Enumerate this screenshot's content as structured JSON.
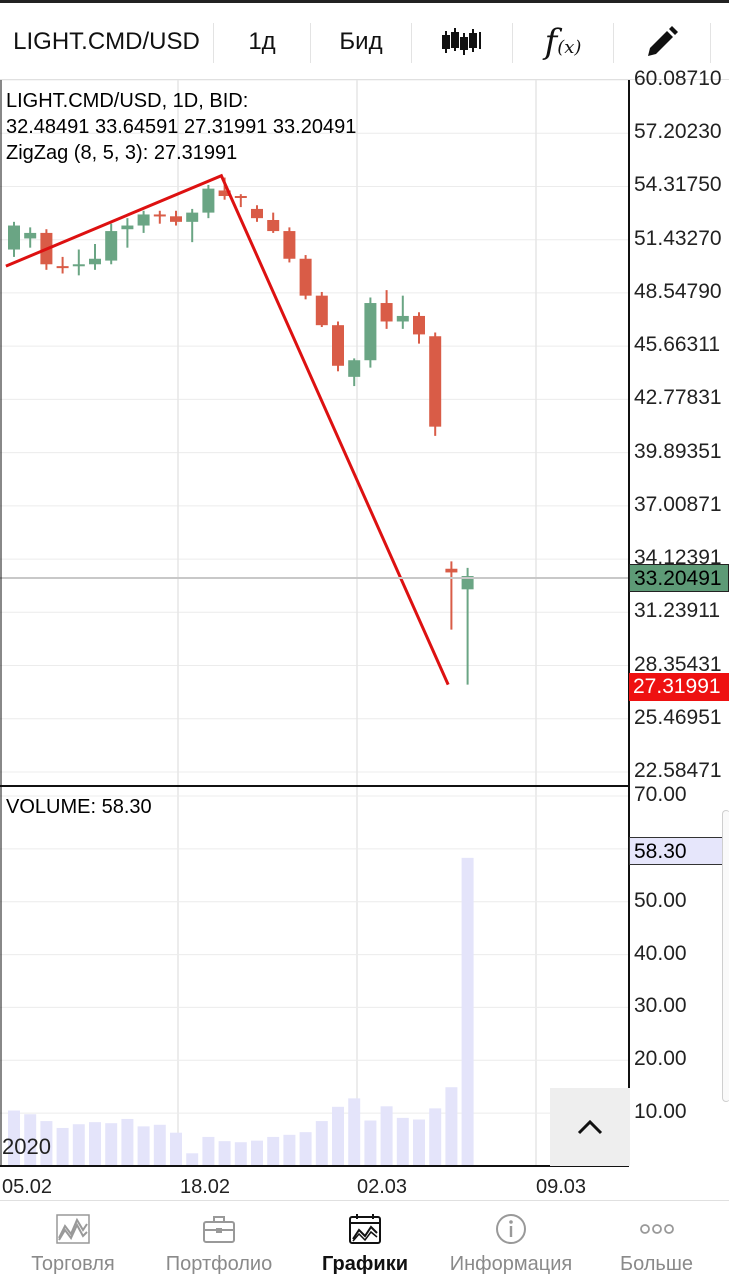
{
  "toolbar": {
    "symbol": "LIGHT.CMD/USD",
    "timeframe": "1д",
    "price_type": "Бид",
    "chart_type_icon": "candlestick-icon",
    "indicator_icon": "function-icon",
    "draw_icon": "pencil-icon",
    "indicator_text": "f",
    "indicator_sub": "(x)"
  },
  "legend": {
    "line1": "LIGHT.CMD/USD, 1D, BID:",
    "line2": "32.48491 33.64591 27.31991 33.20491",
    "line3": "ZigZag (8, 5, 3): 27.31991"
  },
  "price_axis": [
    "60.08710",
    "57.20230",
    "54.31750",
    "51.43270",
    "48.54790",
    "45.66311",
    "42.77831",
    "39.89351",
    "37.00871",
    "34.12391",
    "31.23911",
    "28.35431",
    "25.46951",
    "22.58471"
  ],
  "current_price": "33.20491",
  "zigzag_price": "27.31991",
  "colors": {
    "up": "#6aa584",
    "down": "#d95c47",
    "zigzag": "#dd1111",
    "volume": "#e4e4fa",
    "current_tag": "#5d9a76",
    "zigzag_tag": "#ee1111"
  },
  "volume": {
    "label": "VOLUME: 58.30",
    "current": "58.30",
    "axis": [
      "70.00",
      "60.00",
      "50.00",
      "40.00",
      "30.00",
      "20.00",
      "10.00"
    ]
  },
  "year_label": "2020",
  "dates": [
    "05.02",
    "18.02",
    "02.03",
    "09.03"
  ],
  "nav": [
    {
      "label": "Торговля",
      "icon": "trading-icon"
    },
    {
      "label": "Портфолио",
      "icon": "briefcase-icon"
    },
    {
      "label": "Графики",
      "icon": "charts-icon",
      "active": true
    },
    {
      "label": "Информация",
      "icon": "info-icon"
    },
    {
      "label": "Больше",
      "icon": "more-icon"
    }
  ],
  "chart_data": {
    "type": "candlestick",
    "series": [
      {
        "name": "LIGHT.CMD/USD",
        "ohlc": [
          [
            50.9,
            52.4,
            50.5,
            52.2
          ],
          [
            51.5,
            52.1,
            51.0,
            51.8
          ],
          [
            51.8,
            52.0,
            49.8,
            50.1
          ],
          [
            50.0,
            50.5,
            49.6,
            49.9
          ],
          [
            50.0,
            50.9,
            49.5,
            50.1
          ],
          [
            50.1,
            51.2,
            49.8,
            50.4
          ],
          [
            50.3,
            52.3,
            50.1,
            51.9
          ],
          [
            52.0,
            52.6,
            51.0,
            52.2
          ],
          [
            52.2,
            53.0,
            51.8,
            52.8
          ],
          [
            52.8,
            53.0,
            52.3,
            52.7
          ],
          [
            52.7,
            53.0,
            52.2,
            52.4
          ],
          [
            52.4,
            53.1,
            51.3,
            52.9
          ],
          [
            52.9,
            54.4,
            52.6,
            54.2
          ],
          [
            54.1,
            54.8,
            53.6,
            53.8
          ],
          [
            53.8,
            53.9,
            53.2,
            53.7
          ],
          [
            53.1,
            53.3,
            52.4,
            52.6
          ],
          [
            52.5,
            52.9,
            51.8,
            51.9
          ],
          [
            51.9,
            52.1,
            50.2,
            50.4
          ],
          [
            50.4,
            50.6,
            48.2,
            48.4
          ],
          [
            48.4,
            48.6,
            46.7,
            46.8
          ],
          [
            46.8,
            47.0,
            44.3,
            44.6
          ],
          [
            44.0,
            45.0,
            43.5,
            44.9
          ],
          [
            44.9,
            48.3,
            44.5,
            48.0
          ],
          [
            48.0,
            48.7,
            46.6,
            47.0
          ],
          [
            47.0,
            48.4,
            46.6,
            47.3
          ],
          [
            47.3,
            47.5,
            45.8,
            46.3
          ],
          [
            46.2,
            46.4,
            40.8,
            41.3
          ],
          [
            33.6,
            34.0,
            30.3,
            33.4
          ],
          [
            32.48491,
            33.64591,
            27.31991,
            33.20491
          ]
        ]
      },
      {
        "name": "ZigZag (8, 5, 3)",
        "points": [
          [
            -0.5,
            50.0
          ],
          [
            12.8,
            54.9
          ],
          [
            26.8,
            27.31991
          ]
        ]
      },
      {
        "name": "VOLUME",
        "values": [
          10.5,
          9.8,
          8.5,
          7.2,
          7.9,
          8.3,
          8.1,
          8.9,
          7.5,
          7.8,
          6.3,
          2.4,
          5.5,
          4.7,
          4.5,
          4.8,
          5.5,
          5.9,
          6.4,
          8.5,
          11.2,
          12.8,
          8.6,
          11.3,
          9.1,
          8.8,
          10.9,
          14.9,
          58.3
        ]
      }
    ],
    "price_ylim": [
      22.58471,
      60.0871
    ],
    "volume_ylim": [
      0,
      70
    ],
    "grid": true
  }
}
